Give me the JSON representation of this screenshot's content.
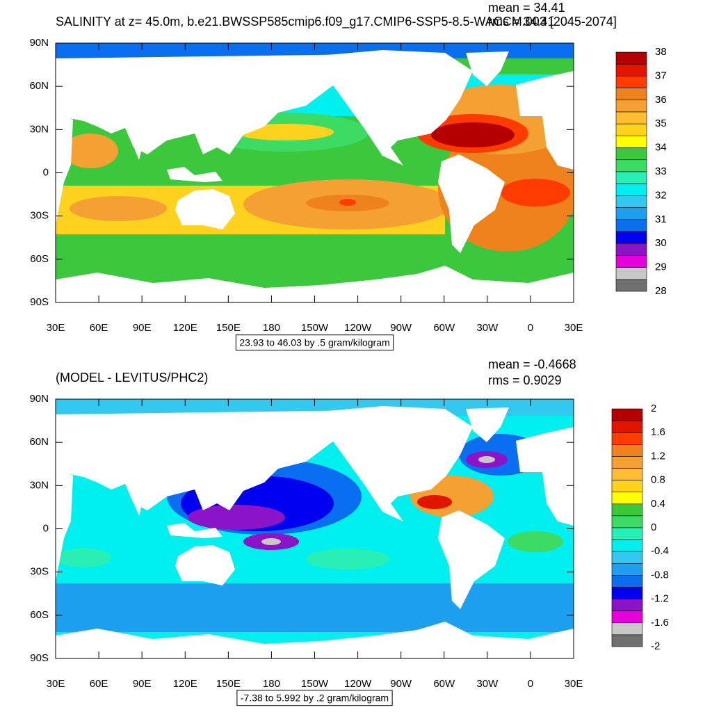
{
  "panels": [
    {
      "title": "SALINITY at z=  45.0m, b.e21.BWSSP585cmip6.f09_g17.CMIP6-SSP5-8.5-WACCM.003 [2045-2074]",
      "mean_label": "mean = 34.41",
      "rms_label": "rms = 34.41",
      "info_label": "23.93 to 46.03 by .5 gram/kilogram",
      "lat_labels": [
        "90N",
        "60N",
        "30N",
        "0",
        "30S",
        "60S",
        "90S"
      ],
      "lon_labels": [
        "30E",
        "60E",
        "90E",
        "120E",
        "150E",
        "180",
        "150W",
        "120W",
        "90W",
        "60W",
        "30W",
        "0",
        "30E"
      ],
      "colorbar": {
        "labels": [
          38,
          37,
          36,
          35,
          34,
          33,
          32,
          31,
          30,
          29,
          28
        ],
        "colors": [
          "#b40000",
          "#e11400",
          "#ff3c00",
          "#f0821e",
          "#f5a032",
          "#ffbe32",
          "#ffd21e",
          "#ffff00",
          "#3cc83c",
          "#3cdc64",
          "#28f0b4",
          "#00f0f0",
          "#32c8f0",
          "#1ea0f0",
          "#0a6ef0",
          "#0000f0",
          "#8c14c8",
          "#e600dc",
          "#c8c8c8",
          "#707070"
        ]
      }
    },
    {
      "title": "(MODEL - LEVITUS/PHC2)",
      "mean_label": "mean = -0.4668",
      "rms_label": "rms = 0.9029",
      "info_label": "-7.38 to 5.992 by .2 gram/kilogram",
      "lat_labels": [
        "90N",
        "60N",
        "30N",
        "0",
        "30S",
        "60S",
        "90S"
      ],
      "lon_labels": [
        "30E",
        "60E",
        "90E",
        "120E",
        "150E",
        "180",
        "150W",
        "120W",
        "90W",
        "60W",
        "30W",
        "0",
        "30E"
      ],
      "colorbar": {
        "labels": [
          2,
          1.6,
          1.2,
          0.8,
          0.4,
          0,
          -0.4,
          -0.8,
          -1.2,
          -1.6,
          -2
        ],
        "colors": [
          "#b40000",
          "#e11400",
          "#ff3c00",
          "#f0821e",
          "#f5a032",
          "#ffbe32",
          "#ffd21e",
          "#ffff00",
          "#3cc83c",
          "#3cdc64",
          "#28f0b4",
          "#00f0f0",
          "#32c8f0",
          "#1ea0f0",
          "#0a6ef0",
          "#0000f0",
          "#8c14c8",
          "#e600dc",
          "#c8c8c8",
          "#707070"
        ]
      }
    }
  ]
}
